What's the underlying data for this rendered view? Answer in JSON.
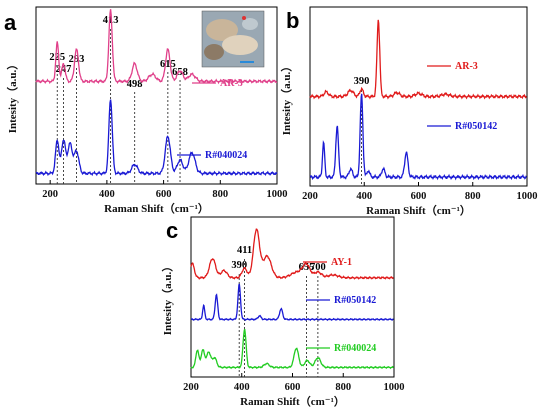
{
  "figure": {
    "panels": [
      "a",
      "b",
      "c"
    ]
  },
  "chart_data": [
    {
      "panel": "a",
      "type": "line",
      "xlabel": "Raman Shift（cm⁻¹）",
      "ylabel": "Intesity（a.u.）",
      "xlim": [
        150,
        1000
      ],
      "xticks": [
        200,
        400,
        600,
        800,
        1000
      ],
      "inset_photo": true,
      "peak_labels": [
        225,
        247,
        293,
        413,
        498,
        615,
        658
      ],
      "series": [
        {
          "name": "AR-3",
          "color": "#e0408a",
          "offset": 0.58,
          "scale": 0.4,
          "peaks": [
            [
              225,
              0.55,
              5
            ],
            [
              247,
              0.25,
              6
            ],
            [
              293,
              0.45,
              7
            ],
            [
              413,
              1.0,
              6
            ],
            [
              498,
              0.25,
              9
            ],
            [
              560,
              0.1,
              12
            ],
            [
              615,
              0.45,
              8
            ],
            [
              658,
              0.15,
              10
            ],
            [
              700,
              0.1,
              12
            ]
          ]
        },
        {
          "name": "R#040024",
          "color": "#1a1ad4",
          "offset": 0.06,
          "scale": 0.42,
          "peaks": [
            [
              225,
              0.45,
              6
            ],
            [
              247,
              0.45,
              7
            ],
            [
              270,
              0.4,
              8
            ],
            [
              293,
              0.3,
              8
            ],
            [
              413,
              1.0,
              6
            ],
            [
              498,
              0.12,
              10
            ],
            [
              615,
              0.5,
              9
            ],
            [
              658,
              0.18,
              10
            ],
            [
              700,
              0.28,
              11
            ]
          ]
        }
      ]
    },
    {
      "panel": "b",
      "type": "line",
      "xlabel": "Raman Shift（cm⁻¹）",
      "ylabel": "Intesity（a.u.）",
      "xlim": [
        200,
        1000
      ],
      "xticks": [
        200,
        400,
        600,
        800,
        1000
      ],
      "peak_labels": [
        390
      ],
      "series": [
        {
          "name": "AR-3",
          "color": "#e01b1b",
          "offset": 0.5,
          "scale": 0.43,
          "peaks": [
            [
              260,
              0.06,
              8
            ],
            [
              350,
              0.08,
              10
            ],
            [
              390,
              0.1,
              6
            ],
            [
              452,
              1.0,
              5
            ],
            [
              520,
              0.05,
              10
            ],
            [
              600,
              0.04,
              12
            ],
            [
              700,
              0.03,
              14
            ]
          ]
        },
        {
          "name": "R#050142",
          "color": "#1a1ad4",
          "offset": 0.05,
          "scale": 0.46,
          "peaks": [
            [
              250,
              0.42,
              4
            ],
            [
              300,
              0.62,
              5
            ],
            [
              350,
              0.1,
              6
            ],
            [
              390,
              1.0,
              5
            ],
            [
              415,
              0.08,
              5
            ],
            [
              470,
              0.1,
              6
            ],
            [
              555,
              0.3,
              6
            ]
          ]
        }
      ]
    },
    {
      "panel": "c",
      "type": "line",
      "xlabel": "Raman Shift（cm⁻¹）",
      "ylabel": "Intesity（a.u.）",
      "xlim": [
        200,
        1000
      ],
      "xticks": [
        200,
        400,
        600,
        800,
        1000
      ],
      "peak_labels": [
        390,
        411,
        655,
        700
      ],
      "series": [
        {
          "name": "AY-1",
          "color": "#e01b1b",
          "offset": 0.62,
          "scale": 0.3,
          "peaks": [
            [
              205,
              0.3,
              8
            ],
            [
              285,
              0.4,
              12
            ],
            [
              330,
              0.15,
              12
            ],
            [
              411,
              0.2,
              10
            ],
            [
              458,
              1.0,
              12
            ],
            [
              500,
              0.45,
              16
            ],
            [
              620,
              0.12,
              25
            ],
            [
              655,
              0.25,
              14
            ],
            [
              700,
              0.12,
              14
            ],
            [
              760,
              0.06,
              20
            ]
          ]
        },
        {
          "name": "R#050142",
          "color": "#1a1ad4",
          "offset": 0.36,
          "scale": 0.22,
          "peaks": [
            [
              250,
              0.4,
              4
            ],
            [
              300,
              0.7,
              5
            ],
            [
              390,
              1.0,
              5
            ],
            [
              470,
              0.1,
              6
            ],
            [
              555,
              0.3,
              6
            ]
          ]
        },
        {
          "name": "R#040024",
          "color": "#22cc22",
          "offset": 0.06,
          "scale": 0.24,
          "peaks": [
            [
              225,
              0.45,
              6
            ],
            [
              247,
              0.45,
              7
            ],
            [
              270,
              0.4,
              8
            ],
            [
              293,
              0.25,
              8
            ],
            [
              411,
              1.0,
              6
            ],
            [
              498,
              0.1,
              10
            ],
            [
              615,
              0.5,
              9
            ],
            [
              658,
              0.18,
              10
            ],
            [
              700,
              0.25,
              11
            ]
          ]
        }
      ]
    }
  ]
}
